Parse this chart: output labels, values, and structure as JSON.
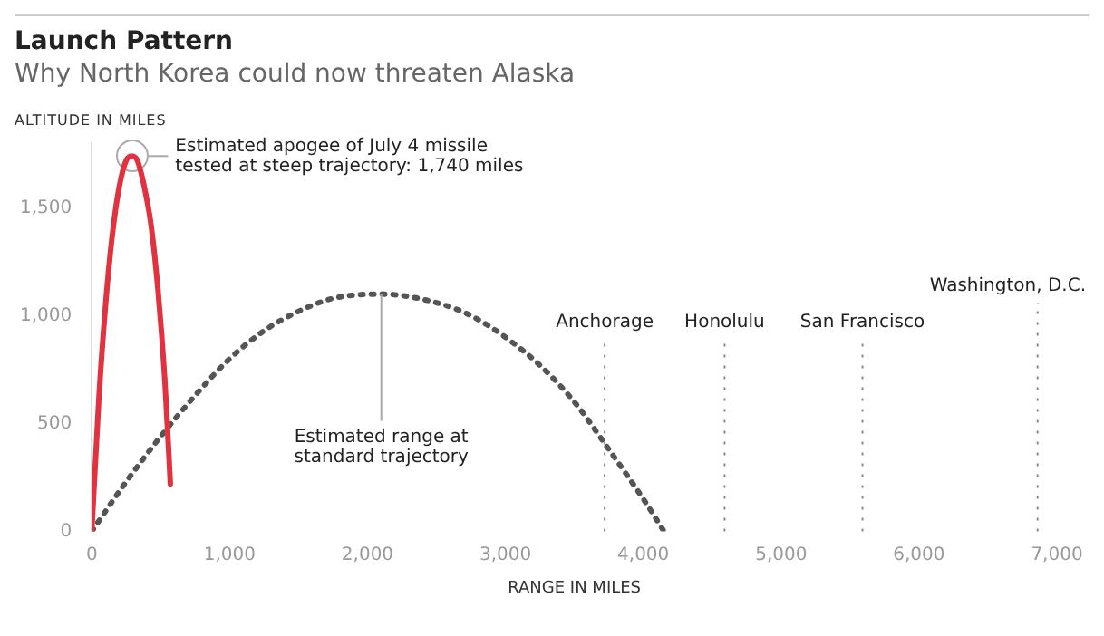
{
  "chart_data": {
    "type": "line",
    "title": "Launch Pattern",
    "subtitle": "Why North Korea could now threaten Alaska",
    "xlabel": "RANGE IN MILES",
    "ylabel": "ALTITUDE IN MILES",
    "series": [
      {
        "type": "line",
        "color": "#e0333f",
        "line_style": "solid",
        "x": [
          0,
          50,
          100,
          150,
          200,
          250,
          290,
          330,
          380,
          430,
          480,
          530,
          570
        ],
        "values": [
          0,
          600,
          1050,
          1380,
          1600,
          1720,
          1740,
          1720,
          1600,
          1420,
          1120,
          700,
          220
        ]
      },
      {
        "type": "line",
        "color": "#555555",
        "line_style": "dotted",
        "x": [
          0,
          250,
          500,
          750,
          1000,
          1250,
          1500,
          1750,
          2100,
          2500,
          2750,
          3000,
          3250,
          3500,
          3750,
          4000,
          4150
        ],
        "values": [
          0,
          230,
          440,
          630,
          800,
          930,
          1020,
          1080,
          1100,
          1060,
          1000,
          900,
          770,
          600,
          380,
          150,
          0
        ]
      }
    ],
    "xlim": [
      0,
      7000
    ],
    "ylim": [
      0,
      1800
    ],
    "xticks": [
      0,
      {
        "value": 1000,
        "label": "1,000"
      },
      {
        "value": 2000,
        "label": "2,000"
      },
      {
        "value": 3000,
        "label": "3,000"
      },
      {
        "value": 4000,
        "label": "4,000"
      },
      {
        "value": 5000,
        "label": "5,000"
      },
      {
        "value": 6000,
        "label": "6,000"
      },
      {
        "value": 7000,
        "label": "7,000"
      }
    ],
    "yticks": [
      0,
      500,
      {
        "value": 1000,
        "label": "1,000"
      },
      {
        "value": 1500,
        "label": "1,500"
      }
    ],
    "grid": false,
    "legend": false,
    "marker": "none",
    "ref_lines": [
      {
        "axis": "x",
        "value": 3720,
        "label": "Anchorage",
        "color": "#888888",
        "line_style": "dotted"
      },
      {
        "axis": "x",
        "value": 4590,
        "label": "Honolulu",
        "color": "#888888",
        "line_style": "dotted"
      },
      {
        "axis": "x",
        "value": 5590,
        "label": "San Francisco",
        "color": "#888888",
        "line_style": "dotted"
      },
      {
        "axis": "x",
        "value": 6860,
        "label": "Washington, D.C.",
        "color": "#888888",
        "line_style": "dotted"
      }
    ],
    "annotations": [
      {
        "text": "Estimated apogee of July 4 missile\ntested at steep trajectory: 1,740 miles",
        "x": 290,
        "y": 1740
      },
      {
        "text": "Estimated range at\nstandard trajectory",
        "x": 2100,
        "y": 1100
      }
    ]
  }
}
